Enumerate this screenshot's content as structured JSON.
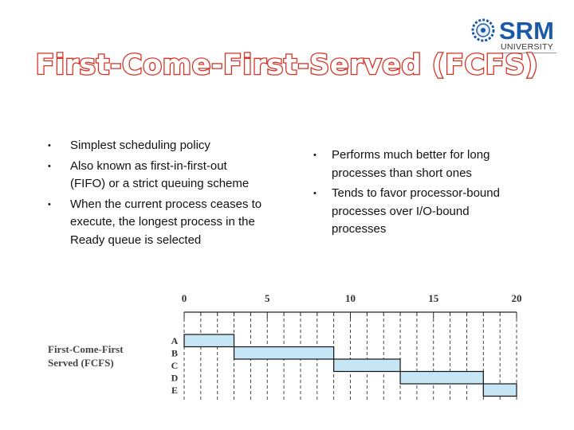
{
  "title": "First-Come-First-Served (FCFS)",
  "logo": {
    "name": "SRM",
    "line2": "UNIVERSITY"
  },
  "left_bullets": [
    "Simplest scheduling policy",
    "Also known as first-in-first-out (FIFO) or a strict queuing scheme",
    "When the current process ceases to execute, the longest process in the Ready queue is selected"
  ],
  "right_bullets": [
    "Performs much better for long processes than short ones",
    "Tends to favor processor-bound processes over I/O-bound processes"
  ],
  "chart_label": "First-Come-First Served (FCFS)",
  "colors": {
    "title_outline": "#d63324",
    "bar_fill": "#c6e6f5",
    "logo_blue": "#1b5aa8"
  },
  "chart_data": {
    "type": "gantt",
    "xlabel": "",
    "ylabel": "",
    "xlim": [
      0,
      20
    ],
    "ticks": [
      0,
      5,
      10,
      15,
      20
    ],
    "processes": [
      "A",
      "B",
      "C",
      "D",
      "E"
    ],
    "bars": [
      {
        "name": "A",
        "start": 0,
        "end": 3
      },
      {
        "name": "B",
        "start": 3,
        "end": 9
      },
      {
        "name": "C",
        "start": 9,
        "end": 13
      },
      {
        "name": "D",
        "start": 13,
        "end": 18
      },
      {
        "name": "E",
        "start": 18,
        "end": 20
      }
    ],
    "grid": true
  }
}
